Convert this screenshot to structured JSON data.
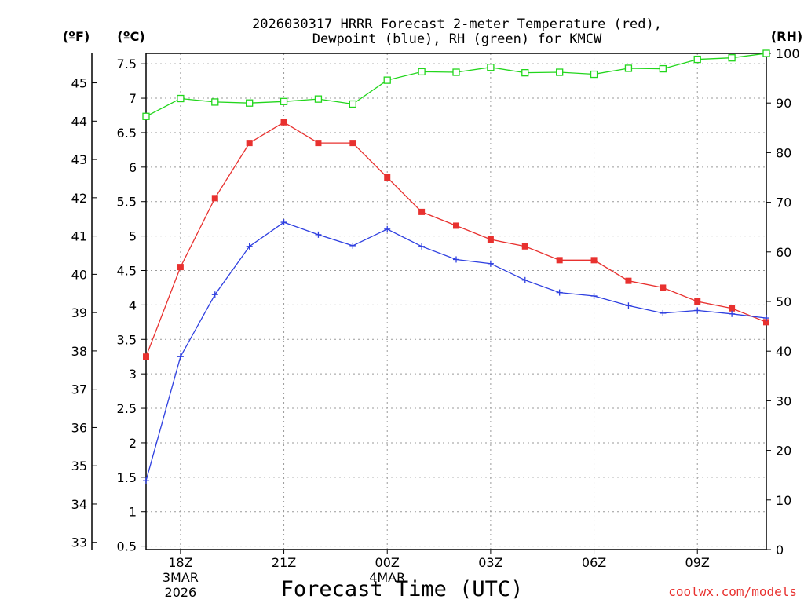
{
  "chart_data": {
    "type": "line",
    "title": "2026030317 HRRR Forecast 2-meter Temperature (red),",
    "title_line2": "Dewpoint (blue), RH (green) for KMCW",
    "xlabel": "Forecast Time (UTC)",
    "ylabel_left_f": "(ºF)",
    "ylabel_left_c": "(ºC)",
    "ylabel_right": "(RH)",
    "credit": "coolwx.com/models",
    "x": [
      "17Z",
      "18Z",
      "19Z",
      "20Z",
      "21Z",
      "22Z",
      "23Z",
      "00Z",
      "01Z",
      "02Z",
      "03Z",
      "04Z",
      "05Z",
      "06Z",
      "07Z",
      "08Z",
      "09Z",
      "10Z",
      "11Z"
    ],
    "x_tick_labels": [
      {
        "label": "18Z",
        "sub1": "3MAR",
        "sub2": "2026",
        "at": "18Z"
      },
      {
        "label": "21Z",
        "sub1": "",
        "sub2": "",
        "at": "21Z"
      },
      {
        "label": "00Z",
        "sub1": "4MAR",
        "sub2": "",
        "at": "00Z"
      },
      {
        "label": "03Z",
        "sub1": "",
        "sub2": "",
        "at": "03Z"
      },
      {
        "label": "06Z",
        "sub1": "",
        "sub2": "",
        "at": "06Z"
      },
      {
        "label": "09Z",
        "sub1": "",
        "sub2": "",
        "at": "09Z"
      }
    ],
    "y_c_ticks": [
      "0.5",
      "1",
      "1.5",
      "2",
      "2.5",
      "3",
      "3.5",
      "4",
      "4.5",
      "5",
      "5.5",
      "6",
      "6.5",
      "7",
      "7.5"
    ],
    "y_f_ticks": [
      "33",
      "34",
      "35",
      "36",
      "37",
      "38",
      "39",
      "40",
      "41",
      "42",
      "43",
      "44",
      "45"
    ],
    "y_rh_ticks": [
      "0",
      "10",
      "20",
      "30",
      "40",
      "50",
      "60",
      "70",
      "80",
      "90",
      "100"
    ],
    "ylim_c": [
      0.45,
      7.65
    ],
    "ylim_rh": [
      0,
      100
    ],
    "grid": true,
    "series": [
      {
        "name": "Temperature",
        "axis": "C",
        "color": "#e8312f",
        "marker": "filled-square",
        "values": [
          3.25,
          4.55,
          5.55,
          6.35,
          6.65,
          6.35,
          6.35,
          5.85,
          5.35,
          5.15,
          4.95,
          4.85,
          4.65,
          4.65,
          4.35,
          4.25,
          4.05,
          3.95,
          3.75
        ]
      },
      {
        "name": "Dewpoint",
        "axis": "C",
        "color": "#2e3fe0",
        "marker": "plus",
        "values": [
          1.45,
          3.25,
          4.15,
          4.85,
          5.2,
          5.02,
          4.86,
          5.1,
          4.85,
          4.66,
          4.6,
          4.36,
          4.18,
          4.13,
          3.99,
          3.88,
          3.92,
          3.87,
          3.81
        ]
      },
      {
        "name": "RH",
        "axis": "RH",
        "color": "#22d61c",
        "marker": "open-square",
        "values": [
          87.3,
          90.9,
          90.2,
          90.0,
          90.3,
          90.8,
          89.8,
          94.6,
          96.3,
          96.2,
          97.2,
          96.1,
          96.2,
          95.8,
          97.0,
          96.9,
          98.8,
          99.1,
          100.0
        ]
      }
    ]
  }
}
